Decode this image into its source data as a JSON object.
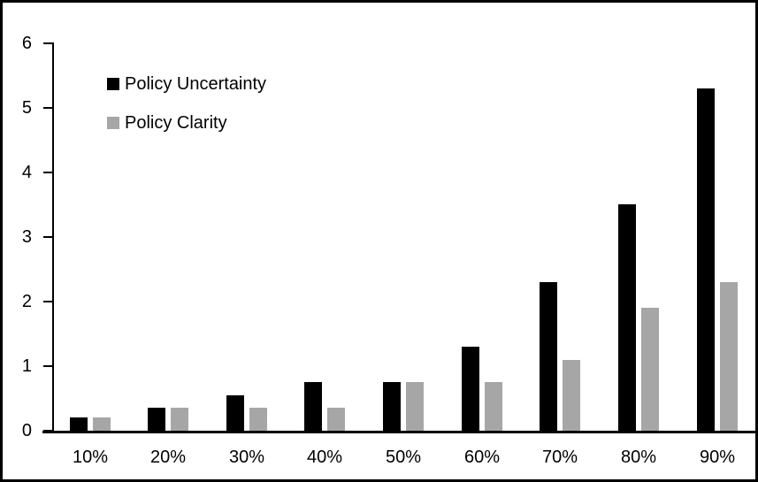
{
  "chart_data": {
    "type": "bar",
    "title": "",
    "xlabel": "",
    "ylabel": "",
    "categories": [
      "10%",
      "20%",
      "30%",
      "40%",
      "50%",
      "60%",
      "70%",
      "80%",
      "90%"
    ],
    "series": [
      {
        "name": "Policy Uncertainty",
        "color": "#000000",
        "values": [
          0.2,
          0.35,
          0.55,
          0.75,
          0.75,
          1.3,
          2.3,
          3.5,
          5.3
        ]
      },
      {
        "name": "Policy Clarity",
        "color": "#a6a6a6",
        "values": [
          0.2,
          0.35,
          0.35,
          0.35,
          0.75,
          0.75,
          1.1,
          1.9,
          2.3
        ]
      }
    ],
    "ylim": [
      0,
      6
    ],
    "yticks": [
      0,
      1,
      2,
      3,
      4,
      5,
      6
    ],
    "grid": false,
    "legend_position": "inside-top-left",
    "axis_color": "#000000",
    "background": "#ffffff"
  }
}
